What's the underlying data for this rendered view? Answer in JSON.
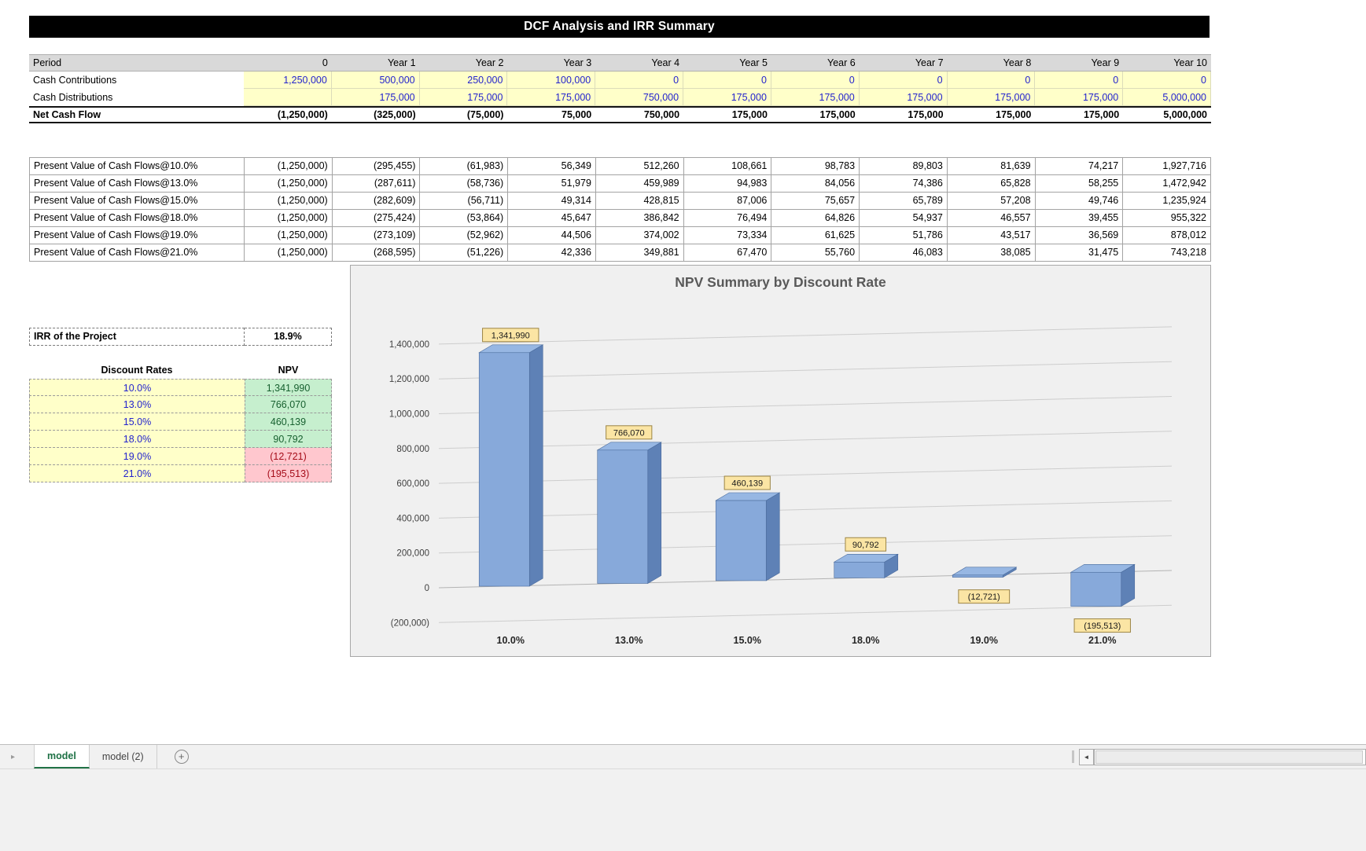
{
  "title": "DCF Analysis and IRR Summary",
  "cashflow_table": {
    "header": [
      "Period",
      "0",
      "Year 1",
      "Year 2",
      "Year 3",
      "Year 4",
      "Year 5",
      "Year 6",
      "Year 7",
      "Year 8",
      "Year 9",
      "Year 10"
    ],
    "rows": [
      {
        "label": "Cash Contributions",
        "values": [
          "1,250,000",
          "500,000",
          "250,000",
          "100,000",
          "0",
          "0",
          "0",
          "0",
          "0",
          "0",
          "0"
        ]
      },
      {
        "label": "Cash Distributions",
        "values": [
          "",
          "175,000",
          "175,000",
          "175,000",
          "750,000",
          "175,000",
          "175,000",
          "175,000",
          "175,000",
          "175,000",
          "5,000,000"
        ]
      },
      {
        "label": "Net Cash Flow",
        "values": [
          "(1,250,000)",
          "(325,000)",
          "(75,000)",
          "75,000",
          "750,000",
          "175,000",
          "175,000",
          "175,000",
          "175,000",
          "175,000",
          "5,000,000"
        ]
      }
    ]
  },
  "pv_table": {
    "rows": [
      {
        "label": "Present Value of Cash Flows@10.0%",
        "values": [
          "(1,250,000)",
          "(295,455)",
          "(61,983)",
          "56,349",
          "512,260",
          "108,661",
          "98,783",
          "89,803",
          "81,639",
          "74,217",
          "1,927,716"
        ]
      },
      {
        "label": "Present Value of Cash Flows@13.0%",
        "values": [
          "(1,250,000)",
          "(287,611)",
          "(58,736)",
          "51,979",
          "459,989",
          "94,983",
          "84,056",
          "74,386",
          "65,828",
          "58,255",
          "1,472,942"
        ]
      },
      {
        "label": "Present Value of Cash Flows@15.0%",
        "values": [
          "(1,250,000)",
          "(282,609)",
          "(56,711)",
          "49,314",
          "428,815",
          "87,006",
          "75,657",
          "65,789",
          "57,208",
          "49,746",
          "1,235,924"
        ]
      },
      {
        "label": "Present Value of Cash Flows@18.0%",
        "values": [
          "(1,250,000)",
          "(275,424)",
          "(53,864)",
          "45,647",
          "386,842",
          "76,494",
          "64,826",
          "54,937",
          "46,557",
          "39,455",
          "955,322"
        ]
      },
      {
        "label": "Present Value of Cash Flows@19.0%",
        "values": [
          "(1,250,000)",
          "(273,109)",
          "(52,962)",
          "44,506",
          "374,002",
          "73,334",
          "61,625",
          "51,786",
          "43,517",
          "36,569",
          "878,012"
        ]
      },
      {
        "label": "Present Value of Cash Flows@21.0%",
        "values": [
          "(1,250,000)",
          "(268,595)",
          "(51,226)",
          "42,336",
          "349,881",
          "67,470",
          "55,760",
          "46,083",
          "38,085",
          "31,475",
          "743,218"
        ]
      }
    ]
  },
  "irr": {
    "label": "IRR of the Project",
    "value": "18.9%"
  },
  "npv_table": {
    "headers": [
      "Discount Rates",
      "NPV"
    ],
    "rows": [
      {
        "rate": "10.0%",
        "npv": "1,341,990",
        "negative": false
      },
      {
        "rate": "13.0%",
        "npv": "766,070",
        "negative": false
      },
      {
        "rate": "15.0%",
        "npv": "460,139",
        "negative": false
      },
      {
        "rate": "18.0%",
        "npv": "90,792",
        "negative": false
      },
      {
        "rate": "19.0%",
        "npv": "(12,721)",
        "negative": true
      },
      {
        "rate": "21.0%",
        "npv": "(195,513)",
        "negative": true
      }
    ]
  },
  "chart_data": {
    "type": "bar",
    "style": "3d-column",
    "title": "NPV Summary by Discount Rate",
    "categories": [
      "10.0%",
      "13.0%",
      "15.0%",
      "18.0%",
      "19.0%",
      "21.0%"
    ],
    "values": [
      1341990,
      766070,
      460139,
      90792,
      -12721,
      -195513
    ],
    "data_labels": [
      "1,341,990",
      "766,070",
      "460,139",
      "90,792",
      "(12,721)",
      "(195,513)"
    ],
    "xlabel": "",
    "ylabel": "",
    "ylim": [
      -200000,
      1400000
    ],
    "ytick_step": 200000,
    "ytick_labels": [
      "(200,000)",
      "0",
      "200,000",
      "400,000",
      "600,000",
      "800,000",
      "1,000,000",
      "1,200,000",
      "1,400,000"
    ],
    "grid": true,
    "legend": "none",
    "bar_color": "#87A9DA",
    "label_fill": "#FBE5A4"
  },
  "sheet_tabs": {
    "tabs": [
      {
        "label": "model",
        "active": true
      },
      {
        "label": "model (2)",
        "active": false
      }
    ]
  },
  "icons": {
    "tab_scroll": "▸",
    "scroll_left": "◄",
    "add_sheet": "+"
  }
}
